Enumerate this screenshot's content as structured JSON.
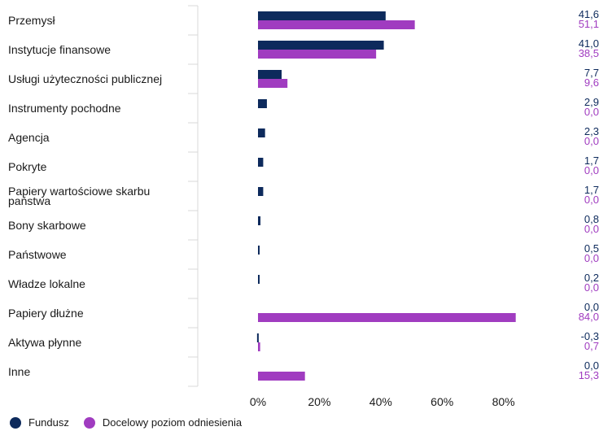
{
  "chart_data": {
    "type": "bar",
    "orientation": "horizontal",
    "categories": [
      "Przemysł",
      "Instytucje finansowe",
      "Usługi użyteczności publicznej",
      "Instrumenty pochodne",
      "Agencja",
      "Pokryte",
      "Papiery wartościowe skarbu państwa",
      "Bony skarbowe",
      "Państwowe",
      "Władze lokalne",
      "Papiery dłużne",
      "Aktywa płynne",
      "Inne"
    ],
    "series": [
      {
        "name": "Fundusz",
        "color": "#0d2a5c",
        "values": [
          41.6,
          41.0,
          7.7,
          2.9,
          2.3,
          1.7,
          1.7,
          0.8,
          0.5,
          0.2,
          0.0,
          -0.3,
          0.0
        ],
        "labels": [
          "41,6",
          "41,0",
          "7,7",
          "2,9",
          "2,3",
          "1,7",
          "1,7",
          "0,8",
          "0,5",
          "0,2",
          "0,0",
          "-0,3",
          "0,0"
        ]
      },
      {
        "name": "Docelowy poziom odniesienia",
        "color": "#a03cc0",
        "values": [
          51.1,
          38.5,
          9.6,
          0.0,
          0.0,
          0.0,
          0.0,
          0.0,
          0.0,
          0.0,
          84.0,
          0.7,
          15.3
        ],
        "labels": [
          "51,1",
          "38,5",
          "9,6",
          "0,0",
          "0,0",
          "0,0",
          "0,0",
          "0,0",
          "0,0",
          "0,0",
          "84,0",
          "0,7",
          "15,3"
        ]
      }
    ],
    "xlim": [
      -20,
      100
    ],
    "xticks": [
      0,
      20,
      40,
      60,
      80
    ],
    "xtick_labels": [
      "0%",
      "20%",
      "40%",
      "60%",
      "80%"
    ],
    "legend_position": "bottom-left",
    "title": "",
    "xlabel": "",
    "ylabel": ""
  }
}
